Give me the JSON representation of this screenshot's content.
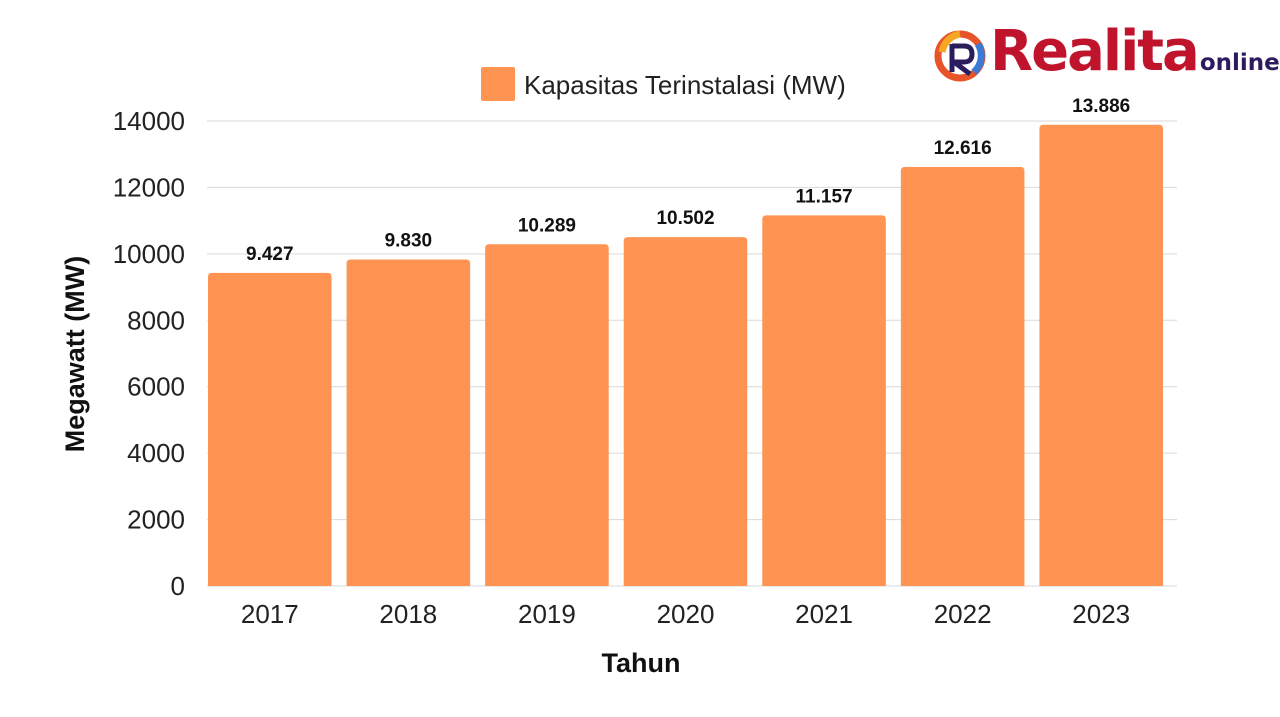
{
  "logo": {
    "brand": "Realita",
    "tld": "online"
  },
  "colors": {
    "bar": "#ff9452",
    "axis_text": "#222222",
    "grid": "#d9d9d9",
    "label": "#111111"
  },
  "chart_data": {
    "type": "bar",
    "legend": "top-right",
    "grid": true,
    "xlabel": "Tahun",
    "ylabel": "Megawatt (MW)",
    "ylim": [
      0,
      14000
    ],
    "yticks": [
      "0",
      "2000",
      "4000",
      "6000",
      "8000",
      "10000",
      "12000",
      "14000"
    ],
    "categories": [
      "2017",
      "2018",
      "2019",
      "2020",
      "2021",
      "2022",
      "2023"
    ],
    "series": [
      {
        "name": "Kapasitas Terinstalasi (MW)",
        "values": [
          9427,
          9830,
          10289,
          10502,
          11157,
          12616,
          13886
        ],
        "labels": [
          "9.427",
          "9.830",
          "10.289",
          "10.502",
          "11.157",
          "12.616",
          "13.886"
        ]
      }
    ]
  }
}
